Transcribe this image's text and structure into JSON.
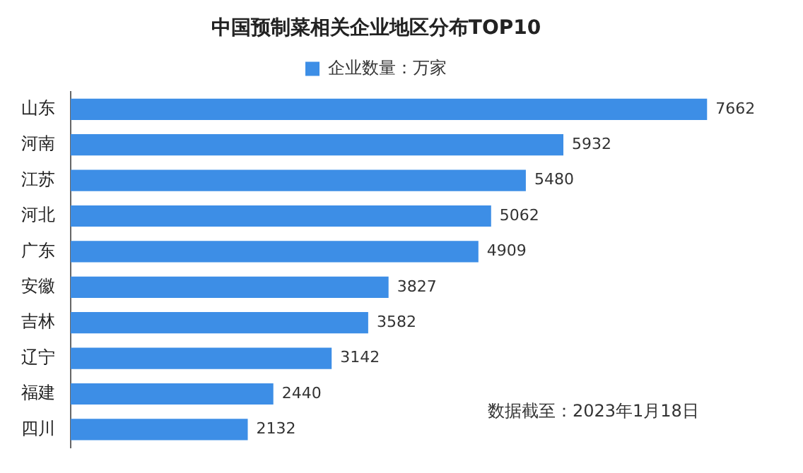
{
  "chart_data": {
    "type": "bar",
    "orientation": "horizontal",
    "title": "中国预制菜相关企业地区分布TOP10",
    "categories": [
      "山东",
      "河南",
      "江苏",
      "河北",
      "广东",
      "安徽",
      "吉林",
      "辽宁",
      "福建",
      "四川"
    ],
    "series": [
      {
        "name": "企业数量：万家",
        "color": "#3d8ee6",
        "values": [
          7662,
          5932,
          5480,
          5062,
          4909,
          3827,
          3582,
          3142,
          2440,
          2132
        ]
      }
    ],
    "data_labels": true,
    "legend": "top",
    "grid": false,
    "annotations": [
      "数据截至：2023年1月18日"
    ]
  }
}
